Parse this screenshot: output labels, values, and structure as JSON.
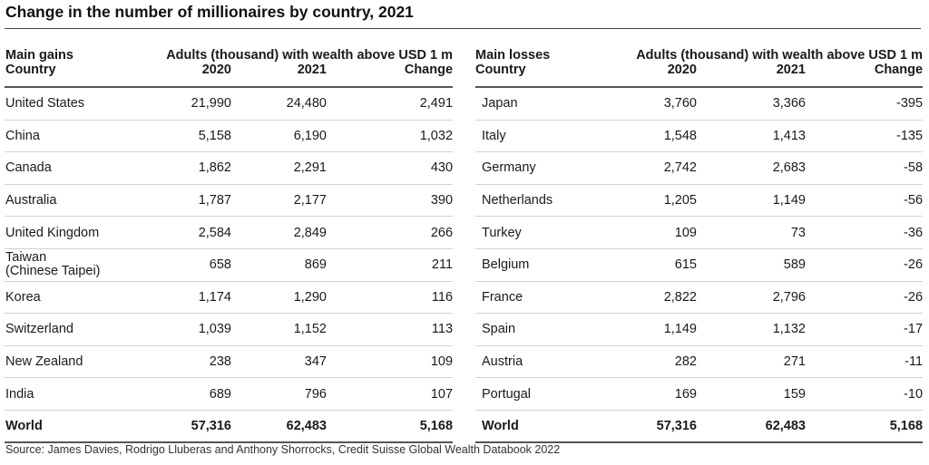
{
  "title": "Change in the number of millionaires by country, 2021",
  "gains": {
    "section_label": "Main gains",
    "country_label": "Country",
    "group_label": "Adults (thousand) with wealth above USD 1 m",
    "col_2020": "2020",
    "col_2021": "2021",
    "col_change": "Change",
    "rows": [
      {
        "country": "United States",
        "y2020": "21,990",
        "y2021": "24,480",
        "change": "2,491"
      },
      {
        "country": "China",
        "y2020": "5,158",
        "y2021": "6,190",
        "change": "1,032"
      },
      {
        "country": "Canada",
        "y2020": "1,862",
        "y2021": "2,291",
        "change": "430"
      },
      {
        "country": "Australia",
        "y2020": "1,787",
        "y2021": "2,177",
        "change": "390"
      },
      {
        "country": "United Kingdom",
        "y2020": "2,584",
        "y2021": "2,849",
        "change": "266"
      },
      {
        "country": "Taiwan",
        "country_line2": "(Chinese Taipei)",
        "y2020": "658",
        "y2021": "869",
        "change": "211"
      },
      {
        "country": "Korea",
        "y2020": "1,174",
        "y2021": "1,290",
        "change": "116"
      },
      {
        "country": "Switzerland",
        "y2020": "1,039",
        "y2021": "1,152",
        "change": "113"
      },
      {
        "country": "New Zealand",
        "y2020": "238",
        "y2021": "347",
        "change": "109"
      },
      {
        "country": "India",
        "y2020": "689",
        "y2021": "796",
        "change": "107"
      }
    ],
    "world": {
      "country": "World",
      "y2020": "57,316",
      "y2021": "62,483",
      "change": "5,168"
    }
  },
  "losses": {
    "section_label": "Main losses",
    "country_label": "Country",
    "group_label": "Adults (thousand) with wealth above USD 1 m",
    "col_2020": "2020",
    "col_2021": "2021",
    "col_change": "Change",
    "rows": [
      {
        "country": "Japan",
        "y2020": "3,760",
        "y2021": "3,366",
        "change": "-395"
      },
      {
        "country": "Italy",
        "y2020": "1,548",
        "y2021": "1,413",
        "change": "-135"
      },
      {
        "country": "Germany",
        "y2020": "2,742",
        "y2021": "2,683",
        "change": "-58"
      },
      {
        "country": "Netherlands",
        "y2020": "1,205",
        "y2021": "1,149",
        "change": "-56"
      },
      {
        "country": "Turkey",
        "y2020": "109",
        "y2021": "73",
        "change": "-36"
      },
      {
        "country": "Belgium",
        "y2020": "615",
        "y2021": "589",
        "change": "-26"
      },
      {
        "country": "France",
        "y2020": "2,822",
        "y2021": "2,796",
        "change": "-26"
      },
      {
        "country": "Spain",
        "y2020": "1,149",
        "y2021": "1,132",
        "change": "-17"
      },
      {
        "country": "Austria",
        "y2020": "282",
        "y2021": "271",
        "change": "-11"
      },
      {
        "country": "Portugal",
        "y2020": "169",
        "y2021": "159",
        "change": "-10"
      }
    ],
    "world": {
      "country": "World",
      "y2020": "57,316",
      "y2021": "62,483",
      "change": "5,168"
    }
  },
  "source": "Source: James Davies, Rodrigo Lluberas and Anthony Shorrocks, Credit Suisse Global Wealth Databook 2022"
}
